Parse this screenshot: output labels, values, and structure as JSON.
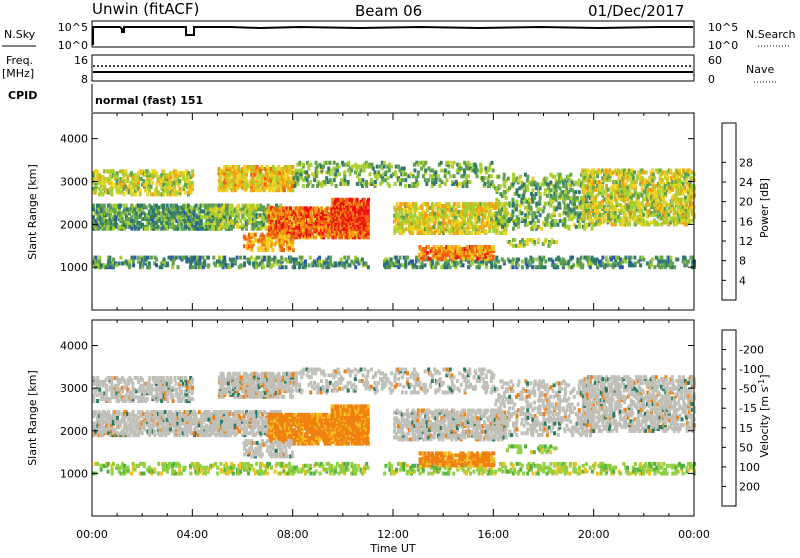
{
  "header": {
    "station": "Unwin (fitACF)",
    "beam": "Beam 06",
    "date": "01/Dec/2017"
  },
  "top_panels": {
    "nsky_label": "N.Sky",
    "nsky_ticks": [
      "10^5",
      "10^0"
    ],
    "nsearch_label": "N.Search",
    "freq_label": "Freq.",
    "freq_unit": "[MHz]",
    "freq_ticks": [
      "16",
      "8"
    ],
    "nave_label": "Nave",
    "nave_ticks": [
      "60",
      "0"
    ],
    "cpid_label": "CPID",
    "cpid_value": "normal (fast) 151"
  },
  "chart_data": [
    {
      "type": "heatmap",
      "name": "power",
      "ylabel": "Slant Range [km]",
      "yticks": [
        1000,
        2000,
        3000,
        4000
      ],
      "ylim": [
        0,
        4600
      ],
      "xlim": [
        0,
        24
      ],
      "colorbar": {
        "title": "Power [dB]",
        "ticks": [
          "4",
          "8",
          "12",
          "16",
          "20",
          "24",
          "28"
        ],
        "colors": [
          "#1a1aff",
          "#2a5aa8",
          "#2f7a6a",
          "#5f9f50",
          "#a8cf30",
          "#f0d020",
          "#f0a010",
          "#f06010",
          "#ee1010"
        ]
      }
    },
    {
      "type": "heatmap",
      "name": "velocity",
      "ylabel": "Slant Range [km]",
      "yticks": [
        1000,
        2000,
        3000,
        4000
      ],
      "ylim": [
        0,
        4600
      ],
      "xlim": [
        0,
        24
      ],
      "xlabel": "Time UT",
      "xticks": [
        "00:00",
        "04:00",
        "08:00",
        "12:00",
        "16:00",
        "20:00",
        "00:00"
      ],
      "colorbar": {
        "title": "Velocity [m s",
        "title_sup": "-1",
        "title_end": "]",
        "ticks": [
          "200",
          "100",
          "50",
          "15",
          "-15",
          "-50",
          "-100",
          "-200"
        ],
        "colors": [
          "#2a2aa8",
          "#2a7a60",
          "#50b040",
          "#90d040",
          "#c0c0b8",
          "#f0c020",
          "#f08010",
          "#f04010",
          "#d01010"
        ]
      }
    }
  ]
}
